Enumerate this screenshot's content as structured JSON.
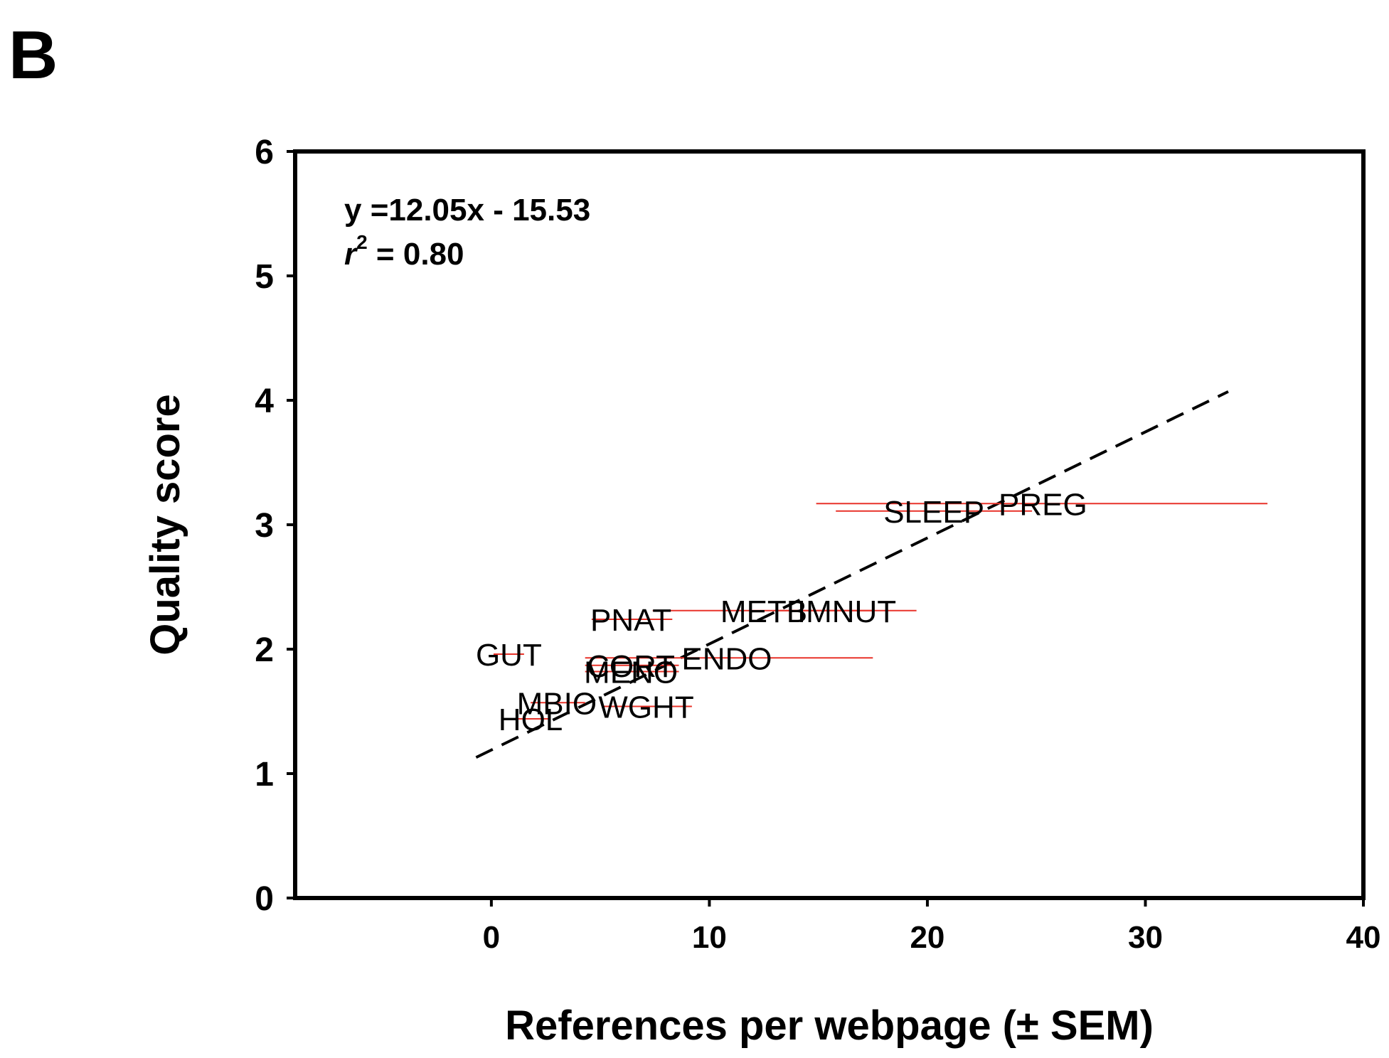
{
  "panel_label": "B",
  "chart_data": {
    "type": "scatter",
    "xlabel": "References per webpage (± SEM)",
    "ylabel": "Quality score",
    "xlim": [
      -9,
      40
    ],
    "ylim": [
      0,
      6
    ],
    "x_ticks": [
      0,
      10,
      20,
      30,
      40
    ],
    "y_ticks": [
      0,
      1,
      2,
      3,
      4,
      5,
      6
    ],
    "grid": false,
    "equation": "y =12.05x - 15.53",
    "r_squared_prefix": "r",
    "r_squared_exponent": "2",
    "r_squared_value": " = 0.80",
    "fit_line": {
      "x1": -0.7,
      "y1": 1.13,
      "x2": 33.8,
      "y2": 4.07
    },
    "error_color": "#e8332a",
    "points": [
      {
        "label": "PREG",
        "x": 25.3,
        "y": 3.17,
        "x_low": 14.9,
        "x_high": 35.6
      },
      {
        "label": "SLEEP",
        "x": 20.3,
        "y": 3.11,
        "x_low": 15.8,
        "x_high": 24.8
      },
      {
        "label": "METB",
        "x": 12.5,
        "y": 2.31,
        "x_low": 7.4,
        "x_high": 17.5
      },
      {
        "label": "IMNUT",
        "x": 16.3,
        "y": 2.31,
        "x_low": 13.0,
        "x_high": 19.5
      },
      {
        "label": "PNAT",
        "x": 6.4,
        "y": 2.24,
        "x_low": 4.6,
        "x_high": 8.3
      },
      {
        "label": "ENDO",
        "x": 10.8,
        "y": 1.93,
        "x_low": 4.3,
        "x_high": 17.5
      },
      {
        "label": "GUT",
        "x": 0.8,
        "y": 1.96,
        "x_low": 0.1,
        "x_high": 1.5
      },
      {
        "label": "CORT",
        "x": 6.4,
        "y": 1.87,
        "x_low": 4.3,
        "x_high": 8.6
      },
      {
        "label": "MENO",
        "x": 6.4,
        "y": 1.82,
        "x_low": 4.3,
        "x_high": 8.6
      },
      {
        "label": "WGHT",
        "x": 7.1,
        "y": 1.54,
        "x_low": 5.1,
        "x_high": 9.2
      },
      {
        "label": "MBIO",
        "x": 3.0,
        "y": 1.57,
        "x_low": 1.8,
        "x_high": 4.3
      },
      {
        "label": "HOL",
        "x": 1.8,
        "y": 1.44,
        "x_low": 1.0,
        "x_high": 2.6
      }
    ]
  }
}
